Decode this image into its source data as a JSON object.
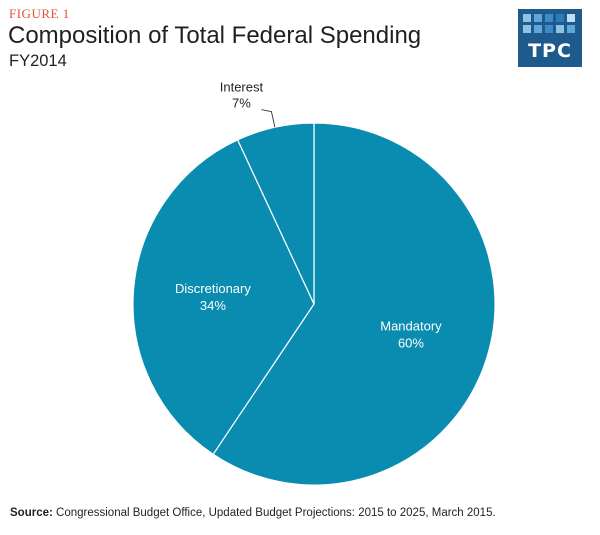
{
  "figure_label": "FIGURE 1",
  "logo": {
    "text": "TPC",
    "background": "#1e5a8c"
  },
  "source": {
    "label": "Source:",
    "text": "Congressional Budget Office, Updated Budget Projections: 2015 to 2025, March 2015."
  },
  "colors": {
    "slice": "#0a8bb0",
    "separator": "#ffffff",
    "figure_label": "#e0533a",
    "text": "#231f20"
  },
  "chart_data": {
    "type": "pie",
    "title": "Composition of Total Federal Spending",
    "subtitle": "FY2014",
    "slices": [
      {
        "label": "Mandatory",
        "value": 60,
        "display": "60%"
      },
      {
        "label": "Discretionary",
        "value": 34,
        "display": "34%"
      },
      {
        "label": "Interest",
        "value": 7,
        "display": "7%"
      }
    ],
    "start": "12 o'clock",
    "direction": "clockwise"
  }
}
